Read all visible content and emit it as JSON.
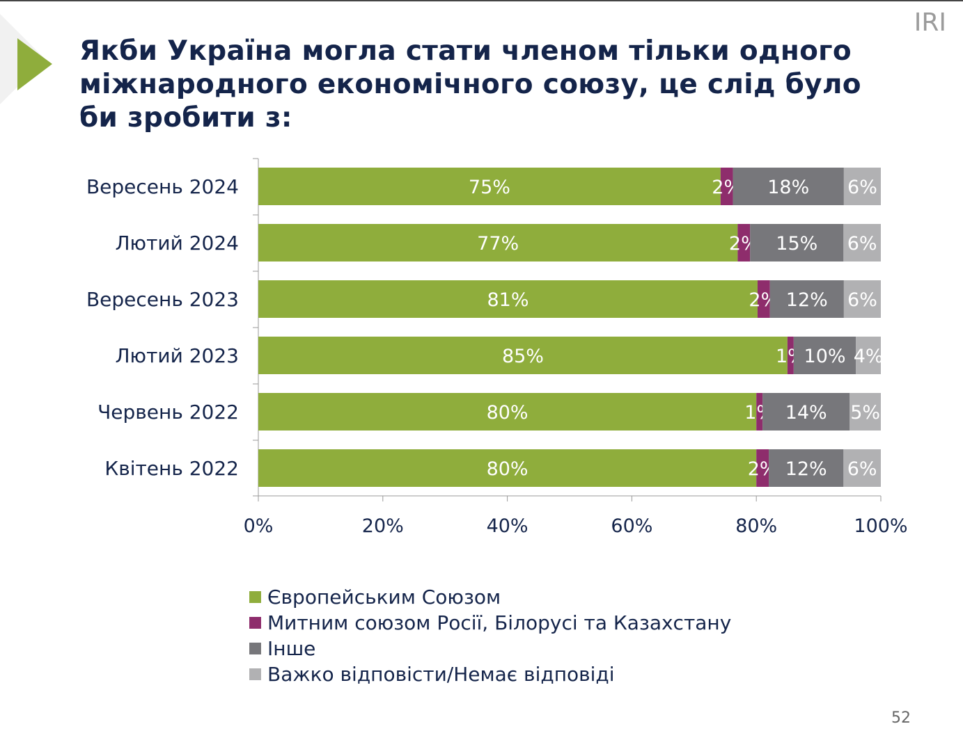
{
  "title": "Якби Україна могла стати членом тільки одного міжнародного економічного союзу, це слід було би зробити з:",
  "logo_text": "IRI",
  "page_number": "52",
  "colors": {
    "accent_triangle": "#8fad3c",
    "title": "#14244a"
  },
  "chart_data": {
    "type": "bar",
    "orientation": "horizontal",
    "stacked": true,
    "categories": [
      "Вересень 2024",
      "Лютий 2024",
      "Вересень 2023",
      "Лютий 2023",
      "Червень 2022",
      "Квітень 2022"
    ],
    "series": [
      {
        "name": "Європейським Союзом",
        "color": "#8fad3c",
        "values": [
          75,
          77,
          81,
          85,
          80,
          80
        ]
      },
      {
        "name": "Митним союзом Росії, Білорусі та Казахстану",
        "color": "#8e2d6c",
        "values": [
          2,
          2,
          2,
          1,
          1,
          2
        ]
      },
      {
        "name": "Інше",
        "color": "#77777b",
        "values": [
          18,
          15,
          12,
          10,
          14,
          12
        ]
      },
      {
        "name": "Важко відповісти/Немає відповіді",
        "color": "#b1b1b3",
        "values": [
          6,
          6,
          6,
          4,
          5,
          6
        ]
      }
    ],
    "xlim": [
      0,
      100
    ],
    "xticks": [
      "0%",
      "20%",
      "40%",
      "60%",
      "80%",
      "100%"
    ],
    "grid": false,
    "legend_placement": "bottom-left"
  }
}
